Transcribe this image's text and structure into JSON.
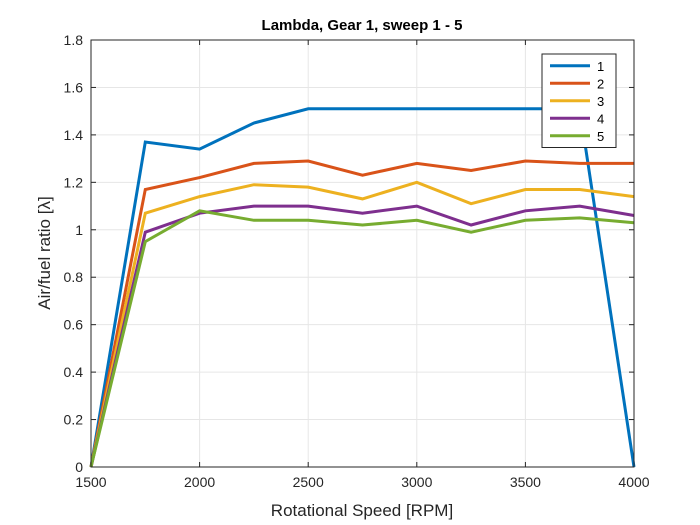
{
  "chart_data": {
    "type": "line",
    "title": "Lambda, Gear 1, sweep 1 - 5",
    "xlabel": "Rotational Speed [RPM]",
    "ylabel": "Air/fuel ratio [λ]",
    "xlim": [
      1500,
      4000
    ],
    "ylim": [
      0,
      1.8
    ],
    "xticks": [
      1500,
      2000,
      2500,
      3000,
      3500,
      4000
    ],
    "yticks": [
      0,
      0.2,
      0.4,
      0.6,
      0.8,
      1,
      1.2,
      1.4,
      1.6,
      1.8
    ],
    "xtick_labels": [
      "1500",
      "2000",
      "2500",
      "3000",
      "3500",
      "4000"
    ],
    "ytick_labels": [
      "0",
      "0.2",
      "0.4",
      "0.6",
      "0.8",
      "1",
      "1.2",
      "1.4",
      "1.6",
      "1.8"
    ],
    "grid": true,
    "legend_position": "top-right",
    "x": [
      1500,
      1750,
      2000,
      2250,
      2500,
      2750,
      3000,
      3250,
      3500,
      3750,
      4000
    ],
    "series": [
      {
        "name": "1",
        "color": "#0072BD",
        "values": [
          0,
          1.37,
          1.34,
          1.45,
          1.51,
          1.51,
          1.51,
          1.51,
          1.51,
          1.51,
          0
        ]
      },
      {
        "name": "2",
        "color": "#D95319",
        "values": [
          0,
          1.17,
          1.22,
          1.28,
          1.29,
          1.23,
          1.28,
          1.25,
          1.29,
          1.28,
          1.28
        ]
      },
      {
        "name": "3",
        "color": "#EDB120",
        "values": [
          0,
          1.07,
          1.14,
          1.19,
          1.18,
          1.13,
          1.2,
          1.11,
          1.17,
          1.17,
          1.14
        ]
      },
      {
        "name": "4",
        "color": "#7E2F8E",
        "values": [
          0,
          0.99,
          1.07,
          1.1,
          1.1,
          1.07,
          1.1,
          1.02,
          1.08,
          1.1,
          1.06
        ]
      },
      {
        "name": "5",
        "color": "#77AC30",
        "values": [
          0,
          0.95,
          1.08,
          1.04,
          1.04,
          1.02,
          1.04,
          0.99,
          1.04,
          1.05,
          1.03
        ]
      }
    ]
  }
}
